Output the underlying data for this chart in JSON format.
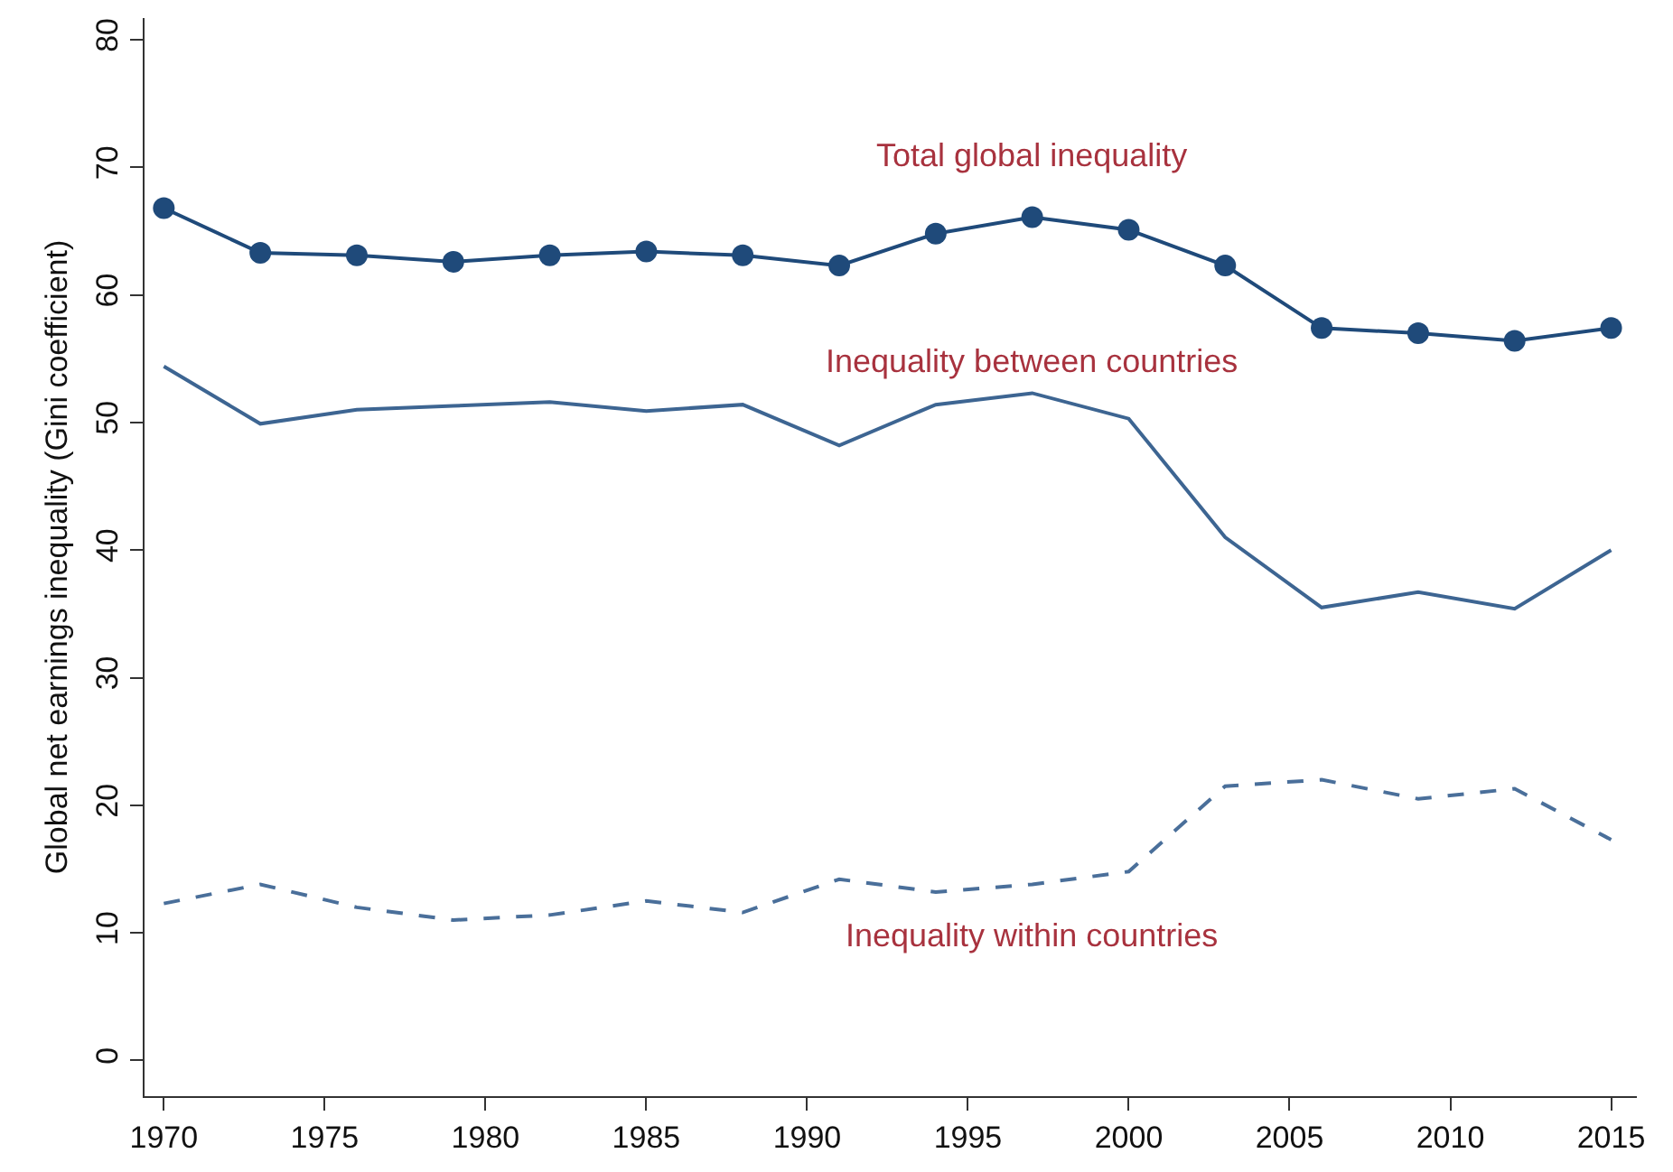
{
  "chart_data": {
    "type": "line",
    "ylabel": "Global net earnings inequality (Gini coefficient)",
    "x": [
      1970,
      1973,
      1976,
      1979,
      1982,
      1985,
      1988,
      1991,
      1994,
      1997,
      2000,
      2003,
      2006,
      2009,
      2012,
      2015
    ],
    "series": [
      {
        "name": "Total global inequality",
        "color": "#1f4a7a",
        "marker": "circle",
        "line_style": "solid",
        "values": [
          66.8,
          63.3,
          63.1,
          62.6,
          63.1,
          63.4,
          63.1,
          62.3,
          64.8,
          66.1,
          65.1,
          62.3,
          57.4,
          57.0,
          56.4,
          57.4
        ]
      },
      {
        "name": "Inequality between countries",
        "color": "#3d6592",
        "line_style": "solid",
        "values": [
          54.4,
          49.9,
          51.0,
          51.3,
          51.6,
          50.9,
          51.4,
          48.2,
          51.4,
          52.3,
          50.3,
          41.0,
          35.5,
          36.7,
          35.4,
          40.0
        ]
      },
      {
        "name": "Inequality within countries",
        "color": "#4a6f9a",
        "line_style": "dashed",
        "values": [
          12.3,
          13.8,
          12.0,
          11.0,
          11.4,
          12.5,
          11.6,
          14.2,
          13.2,
          13.8,
          14.8,
          21.5,
          22.0,
          20.5,
          21.3,
          17.3
        ]
      }
    ],
    "xlim": [
      1969.4,
      2015.8
    ],
    "xticks": [
      1970,
      1975,
      1980,
      1985,
      1990,
      1995,
      2000,
      2005,
      2010,
      2015
    ],
    "ylim": [
      -2.8,
      81.7
    ],
    "yticks": [
      0,
      10,
      20,
      30,
      40,
      50,
      60,
      70,
      80
    ],
    "legend": false
  }
}
